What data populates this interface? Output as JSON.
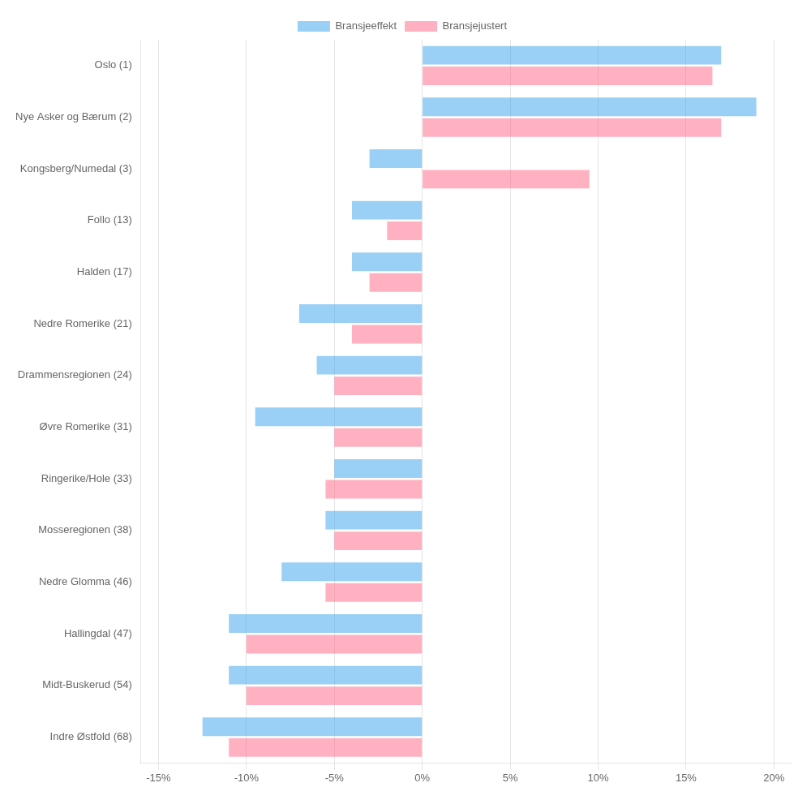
{
  "chart_data": {
    "type": "bar",
    "orientation": "horizontal",
    "categories": [
      "Oslo (1)",
      "Nye Asker og Bærum (2)",
      "Kongsberg/Numedal (3)",
      "Follo (13)",
      "Halden (17)",
      "Nedre Romerike (21)",
      "Drammensregionen (24)",
      "Øvre Romerike (31)",
      "Ringerike/Hole (33)",
      "Mosseregionen (38)",
      "Nedre Glomma (46)",
      "Hallingdal (47)",
      "Midt-Buskerud (54)",
      "Indre Østfold (68)"
    ],
    "series": [
      {
        "name": "Bransjeeffekt",
        "values": [
          17.0,
          19.0,
          -3.0,
          -4.0,
          -4.0,
          -7.0,
          -6.0,
          -9.5,
          -5.0,
          -5.5,
          -8.0,
          -11.0,
          -11.0,
          -12.5
        ]
      },
      {
        "name": "Bransjejustert",
        "values": [
          16.5,
          17.0,
          9.5,
          -2.0,
          -3.0,
          -4.0,
          -5.0,
          -5.0,
          -5.5,
          -5.0,
          -5.5,
          -10.0,
          -10.0,
          -11.0
        ]
      }
    ],
    "xlim": [
      -16,
      21
    ],
    "xticks": [
      {
        "value": -15,
        "label": "-15%"
      },
      {
        "value": -10,
        "label": "-10%"
      },
      {
        "value": -5,
        "label": "-5%"
      },
      {
        "value": 0,
        "label": "0%"
      },
      {
        "value": 5,
        "label": "5%"
      },
      {
        "value": 10,
        "label": "10%"
      },
      {
        "value": 15,
        "label": "15%"
      },
      {
        "value": 20,
        "label": "20%"
      }
    ],
    "grid": true,
    "legend": "top"
  }
}
